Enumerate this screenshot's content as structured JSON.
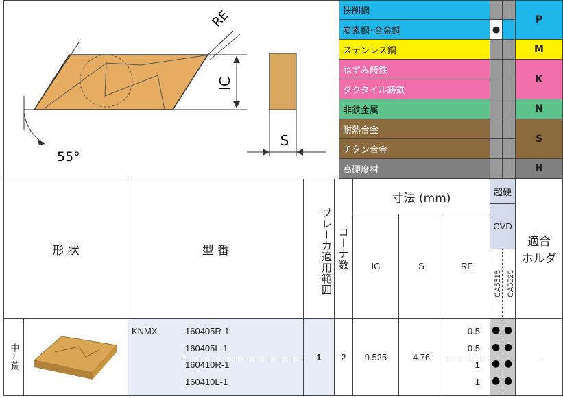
{
  "diagram": {
    "re": "RE",
    "ic": "IC",
    "s": "S",
    "angle": "55°"
  },
  "materials": [
    {
      "group": "P",
      "rows": [
        {
          "name": "快削鋼"
        },
        {
          "name": "炭素鋼･合金鋼",
          "mark": "●"
        }
      ]
    },
    {
      "group": "M",
      "rows": [
        {
          "name": "ステンレス鋼"
        }
      ]
    },
    {
      "group": "K",
      "rows": [
        {
          "name": "ねずみ鋳鉄"
        },
        {
          "name": "ダクタイル鋳鉄"
        }
      ]
    },
    {
      "group": "N",
      "rows": [
        {
          "name": "非鉄金属"
        }
      ]
    },
    {
      "group": "S",
      "rows": [
        {
          "name": "耐熱合金"
        },
        {
          "name": "チタン合金"
        }
      ]
    },
    {
      "group": "H",
      "rows": [
        {
          "name": "高硬度材"
        }
      ]
    }
  ],
  "table": {
    "header": {
      "shape": "形 状",
      "model": "型 番",
      "breaker": "ブレーカ適用範囲",
      "corners": "コーナ数",
      "dimensions": "寸法 (mm)",
      "ic": "IC",
      "s": "S",
      "re": "RE",
      "carbide": "超硬",
      "cvd": "CVD",
      "grades": [
        "CA5515",
        "CA5525"
      ],
      "holder": [
        "適合",
        "ホルダ"
      ]
    },
    "row": {
      "usage": "中~荒",
      "series": "KNMX",
      "breaker": "1",
      "corners": "2",
      "ic": "9.525",
      "s": "4.76",
      "holder": "-",
      "items": [
        {
          "model": "160405R-1",
          "re": "0.5",
          "grades": [
            "●",
            "●"
          ]
        },
        {
          "model": "160405L-1",
          "re": "0.5",
          "grades": [
            "●",
            "●"
          ]
        },
        {
          "model": "160410R-1",
          "re": "1",
          "grades": [
            "●",
            "●"
          ]
        },
        {
          "model": "160410L-1",
          "re": "1",
          "grades": [
            "●",
            "●"
          ]
        }
      ]
    }
  }
}
